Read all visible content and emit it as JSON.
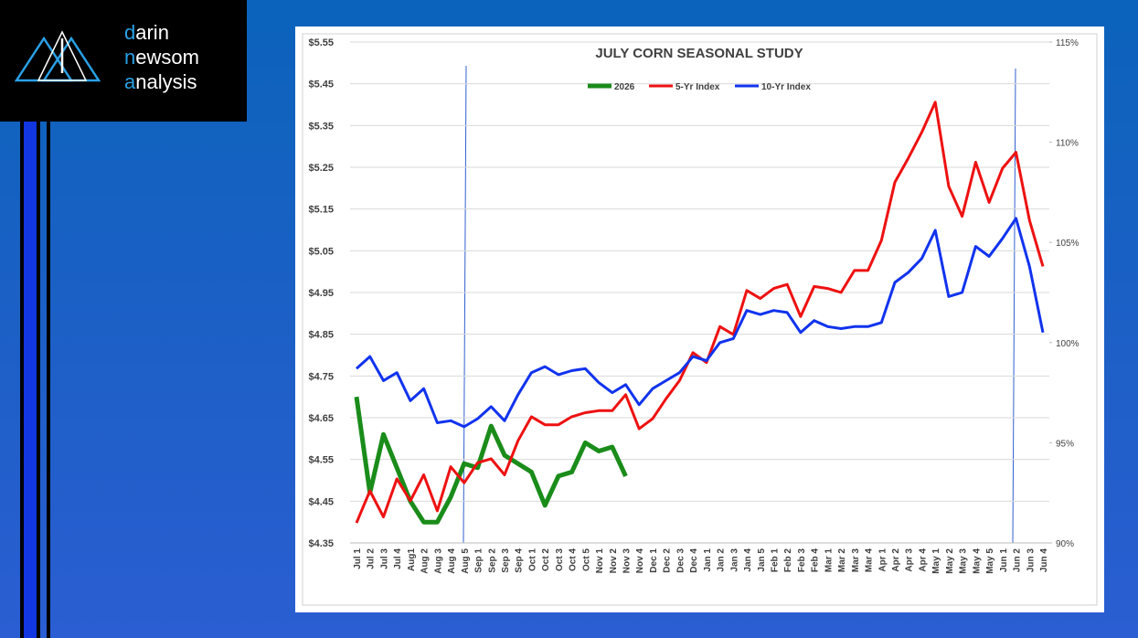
{
  "logo": {
    "lines": [
      "darin",
      "newsom",
      "analysis"
    ]
  },
  "chart_data": {
    "type": "line",
    "title": "JULY CORN SEASONAL STUDY",
    "categories": [
      "Jul 1",
      "Jul 2",
      "Jul 3",
      "Jul 4",
      "Aug1",
      "Aug 2",
      "Aug 3",
      "Aug 4",
      "Aug 5",
      "Sep 1",
      "Sep 2",
      "Sep 3",
      "Sep 4",
      "Oct 1",
      "Oct 2",
      "Oct 3",
      "Oct 4",
      "Oct 5",
      "Nov 1",
      "Nov 2",
      "Nov 3",
      "Nov 4",
      "Dec 1",
      "Dec 2",
      "Dec 3",
      "Dec 4",
      "Jan 1",
      "Jan 2",
      "Jan 3",
      "Jan 4",
      "Jan 5",
      "Feb 1",
      "Feb 2",
      "Feb 3",
      "Feb 4",
      "Mar 1",
      "Mar 2",
      "Mar 3",
      "Mar 4",
      "Apr 1",
      "Apr 2",
      "Apr 3",
      "Apr 4",
      "May 1",
      "May 2",
      "May 3",
      "May 4",
      "May 5",
      "Jun 1",
      "Jun 2",
      "Jun 3",
      "Jun 4"
    ],
    "series": [
      {
        "name": "2026",
        "color": "#1a8c1a",
        "values": [
          4.7,
          4.47,
          4.61,
          4.53,
          4.45,
          4.4,
          4.4,
          4.46,
          4.54,
          4.53,
          4.63,
          4.56,
          4.54,
          4.52,
          4.44,
          4.51,
          4.52,
          4.59,
          4.57,
          4.58,
          4.51,
          null,
          null,
          null,
          null,
          null,
          null,
          null,
          null,
          null,
          null,
          null,
          null,
          null,
          null,
          null,
          null,
          null,
          null,
          null,
          null,
          null,
          null,
          null,
          null,
          null,
          null,
          null,
          null,
          null,
          null,
          null
        ]
      },
      {
        "name": "5-Yr Index",
        "color": "#ee1111",
        "axis": "y2",
        "values": [
          91.0,
          92.6,
          91.3,
          93.2,
          92.1,
          93.4,
          91.6,
          93.8,
          93.0,
          94.0,
          94.2,
          93.4,
          95.1,
          96.3,
          95.9,
          95.9,
          96.3,
          96.5,
          96.6,
          96.6,
          97.4,
          95.7,
          96.2,
          97.2,
          98.1,
          99.5,
          99.0,
          100.8,
          100.4,
          102.6,
          102.2,
          102.7,
          102.9,
          101.3,
          102.8,
          102.7,
          102.5,
          103.6,
          103.6,
          105.1,
          108.0,
          109.2,
          110.5,
          112.0,
          107.8,
          106.3,
          109.0,
          107.0,
          108.7,
          109.5,
          106.1,
          103.8
        ]
      },
      {
        "name": "10-Yr Index",
        "color": "#1133ee",
        "axis": "y2",
        "values": [
          98.7,
          99.3,
          98.1,
          98.5,
          97.1,
          97.7,
          96.0,
          96.1,
          95.8,
          96.2,
          96.8,
          96.1,
          97.4,
          98.5,
          98.8,
          98.4,
          98.6,
          98.7,
          98.0,
          97.5,
          97.9,
          96.9,
          97.7,
          98.1,
          98.5,
          99.3,
          99.1,
          100.0,
          100.2,
          101.6,
          101.4,
          101.6,
          101.5,
          100.5,
          101.1,
          100.8,
          100.7,
          100.8,
          100.8,
          101.0,
          103.0,
          103.5,
          104.2,
          105.6,
          102.3,
          102.5,
          104.8,
          104.3,
          105.2,
          106.2,
          103.8,
          100.5
        ]
      }
    ],
    "ylim": [
      4.35,
      5.55
    ],
    "yticks": [
      {
        "value": 4.35,
        "label": "$4.35"
      },
      {
        "value": 4.45,
        "label": "$4.45"
      },
      {
        "value": 4.55,
        "label": "$4.55"
      },
      {
        "value": 4.65,
        "label": "$4.65"
      },
      {
        "value": 4.75,
        "label": "$4.75"
      },
      {
        "value": 4.85,
        "label": "$4.85"
      },
      {
        "value": 4.95,
        "label": "$4.95"
      },
      {
        "value": 5.05,
        "label": "$5.05"
      },
      {
        "value": 5.15,
        "label": "$5.15"
      },
      {
        "value": 5.25,
        "label": "$5.25"
      },
      {
        "value": 5.35,
        "label": "$5.35"
      },
      {
        "value": 5.45,
        "label": "$5.45"
      },
      {
        "value": 5.55,
        "label": "$5.55"
      }
    ],
    "y2lim": [
      90,
      115
    ],
    "y2ticks": [
      {
        "value": 90,
        "label": "90%"
      },
      {
        "value": 95,
        "label": "95%"
      },
      {
        "value": 100,
        "label": "100%"
      },
      {
        "value": 105,
        "label": "105%"
      },
      {
        "value": 110,
        "label": "110%"
      },
      {
        "value": 115,
        "label": "115%"
      }
    ],
    "grid": true,
    "legend": "top"
  }
}
